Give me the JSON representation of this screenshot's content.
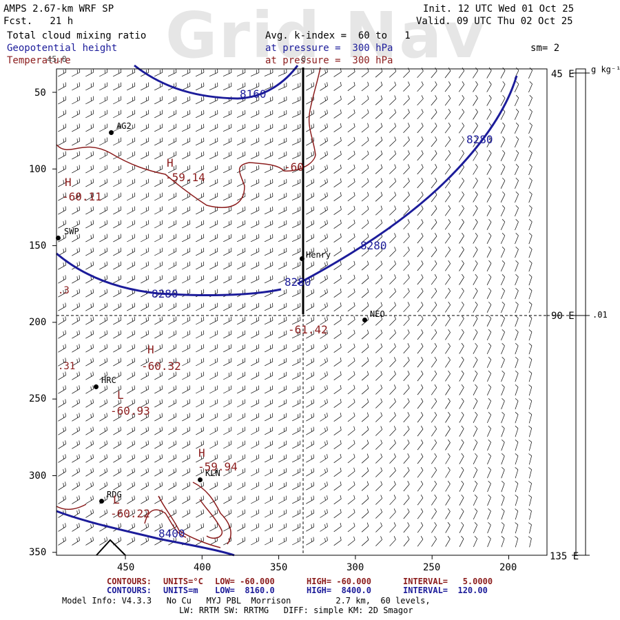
{
  "header": {
    "model": "AMPS 2.67-km WRF SP",
    "fcst": "Fcst.   21 h",
    "init": "Init. 12 UTC Wed 01 Oct 25",
    "valid": "Valid. 09 UTC Thu 02 Oct 25",
    "fields": [
      "Total cloud mixing ratio",
      "Geopotential height",
      "Temperature"
    ],
    "avg_kindex": "Avg. k-index =  60 to   1",
    "pressure_1": "at pressure =  300 hPa",
    "pressure_2": "at pressure =  300 hPa",
    "smoothing": "sm= 2",
    "watermark": "Grid Nav"
  },
  "axes": {
    "y_ticks": [
      "50",
      "100",
      "150",
      "200",
      "250",
      "300",
      "350"
    ],
    "x_ticks": [
      "450",
      "400",
      "350",
      "300",
      "250",
      "200"
    ],
    "right_labels": [
      "45 E",
      "90 E",
      "135 E"
    ],
    "units_label": "g kg⁻¹",
    "colorbar_value": ".01",
    "top_labels": [
      "45.0",
      "0"
    ],
    "left_edge_labels": [
      ".3",
      ".31"
    ]
  },
  "stations": [
    {
      "name": "AG2"
    },
    {
      "name": "SWP"
    },
    {
      "name": "Henry"
    },
    {
      "name": "NEO"
    },
    {
      "name": "HRC"
    },
    {
      "name": "KLN"
    },
    {
      "name": "RDG"
    }
  ],
  "height_labels": [
    "8160",
    "8280",
    "8280",
    "8280",
    "8280",
    "8400"
  ],
  "temp_labels": [
    {
      "letter": "H",
      "value": "-59.14"
    },
    {
      "letter": "H",
      "value": "-60.11"
    },
    {
      "letter": "",
      "value": "-60"
    },
    {
      "letter": "",
      "value": "-61.42"
    },
    {
      "letter": "H",
      "value": "-60.32"
    },
    {
      "letter": "L",
      "value": "-60.93"
    },
    {
      "letter": "H",
      "value": "-59.94"
    },
    {
      "letter": "L",
      "value": "-60.22"
    }
  ],
  "footer": {
    "contours_temp_label": "CONTOURS:",
    "contours_temp_units": "UNITS=°C",
    "contours_temp_low": "LOW= -60.000",
    "contours_temp_high": "HIGH= -60.000",
    "contours_temp_interval": "INTERVAL=   5.0000",
    "contours_hgt_label": "CONTOURS:",
    "contours_hgt_units": "UNITS=m",
    "contours_hgt_low": "LOW=  8160.0",
    "contours_hgt_high": "HIGH=  8400.0",
    "contours_hgt_interval": "INTERVAL=  120.00",
    "model_info": "Model Info: V4.3.3   No Cu   MYJ PBL  Morrison         2.7 km,  60 levels,",
    "model_info_2": "LW: RRTM SW: RRTMG   DIFF: simple KM: 2D Smagor"
  },
  "colors": {
    "height_contour": "#1c1c9a",
    "temp_contour": "#8b1c1c",
    "axis": "#000000",
    "watermark": "#e6e6e6"
  }
}
